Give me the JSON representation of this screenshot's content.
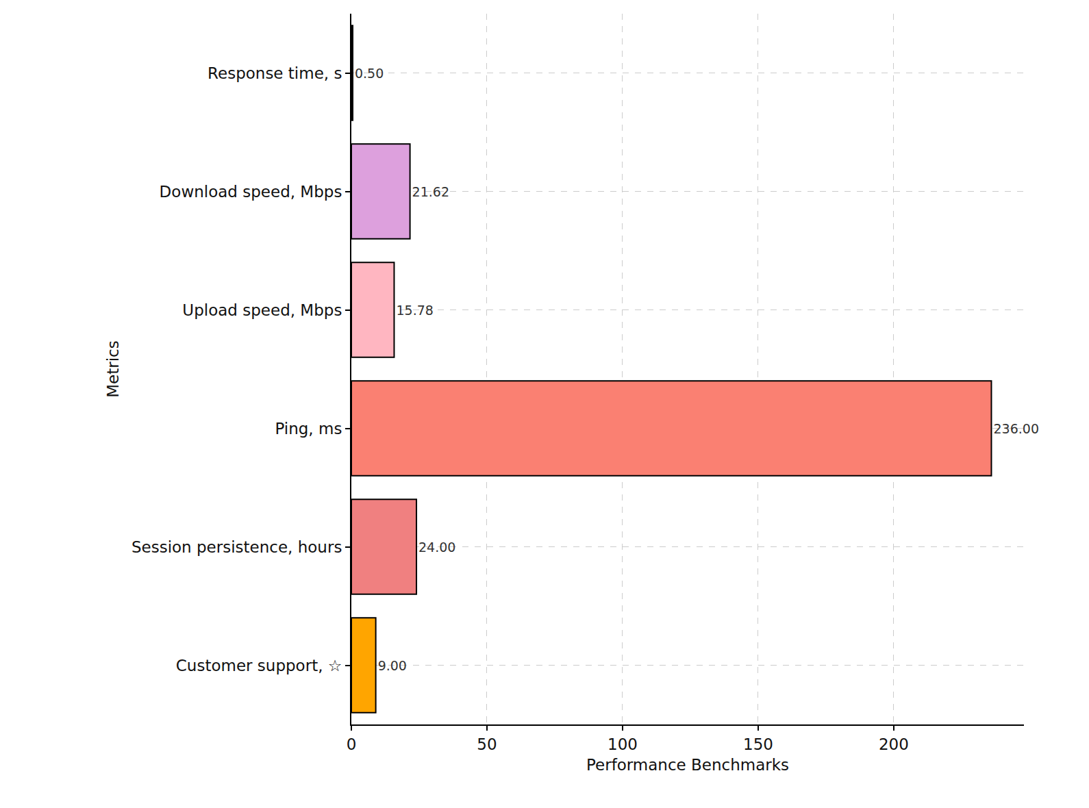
{
  "chart_data": {
    "type": "bar",
    "orientation": "horizontal",
    "x_label": "Performance Benchmarks",
    "y_label": "Metrics",
    "categories": [
      "Response time, s",
      "Download speed, Mbps",
      "Upload speed, Mbps",
      "Ping, ms",
      "Session persistence, hours",
      "Customer support, ☆"
    ],
    "values": [
      0.5,
      21.62,
      15.78,
      236,
      24,
      9
    ],
    "value_labels": [
      "0.50",
      "21.62",
      "15.78",
      "236.00",
      "24.00",
      "9.00"
    ],
    "colors": [
      "#000000",
      "#dda0dd",
      "#ffb6c1",
      "#fa8072",
      "#f08080",
      "#ffa500"
    ],
    "xlim": [
      0,
      248
    ],
    "xticks": [
      0,
      50,
      100,
      150,
      200
    ],
    "grid": true,
    "data_labels": true
  }
}
